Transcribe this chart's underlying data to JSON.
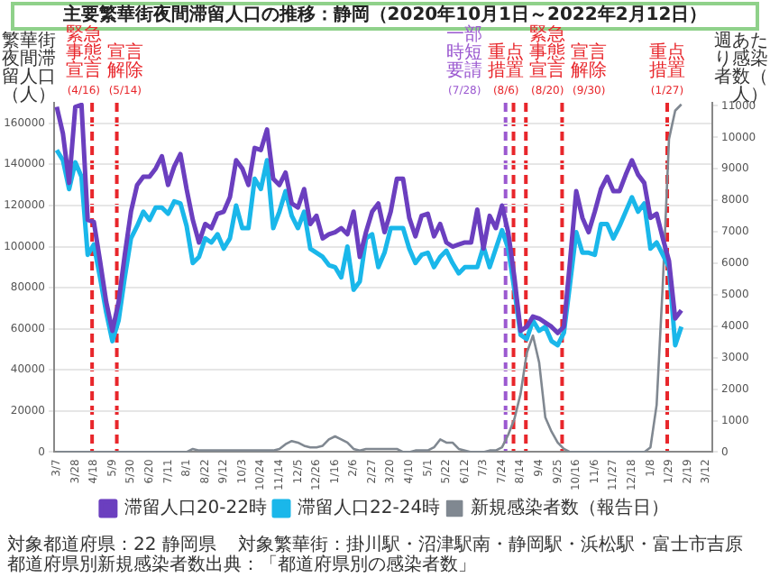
{
  "chart_data": {
    "type": "line",
    "title": "主要繁華街夜間滞留人口の推移：静岡（2020年10月1日～2022年2月12日）",
    "ylabel": "繁華街夜間滞留人口（人）",
    "y2label": "週あたり感染者数（人）",
    "x": [
      "2020-03-07",
      "2020-03-14",
      "2020-03-21",
      "2020-03-28",
      "2020-04-04",
      "2020-04-11",
      "2020-04-18",
      "2020-04-25",
      "2020-05-02",
      "2020-05-09",
      "2020-05-16",
      "2020-05-23",
      "2020-05-30",
      "2020-06-06",
      "2020-06-13",
      "2020-06-20",
      "2020-06-27",
      "2020-07-04",
      "2020-07-11",
      "2020-07-18",
      "2020-07-25",
      "2020-08-01",
      "2020-08-08",
      "2020-08-15",
      "2020-08-22",
      "2020-08-29",
      "2020-09-05",
      "2020-09-12",
      "2020-09-19",
      "2020-09-26",
      "2020-10-03",
      "2020-10-10",
      "2020-10-17",
      "2020-10-24",
      "2020-10-31",
      "2020-11-07",
      "2020-11-14",
      "2020-11-21",
      "2020-11-28",
      "2020-12-05",
      "2020-12-12",
      "2020-12-19",
      "2020-12-26",
      "2021-01-02",
      "2021-01-09",
      "2021-01-16",
      "2021-01-23",
      "2021-01-30",
      "2021-02-06",
      "2021-02-13",
      "2021-02-20",
      "2021-02-27",
      "2021-03-06",
      "2021-03-13",
      "2021-03-20",
      "2021-03-27",
      "2021-04-03",
      "2021-04-10",
      "2021-04-17",
      "2021-04-24",
      "2021-05-01",
      "2021-05-08",
      "2021-05-15",
      "2021-05-22",
      "2021-05-29",
      "2021-06-05",
      "2021-06-12",
      "2021-06-19",
      "2021-06-26",
      "2021-07-03",
      "2021-07-10",
      "2021-07-17",
      "2021-07-24",
      "2021-07-31",
      "2021-08-07",
      "2021-08-14",
      "2021-08-21",
      "2021-08-28",
      "2021-09-04",
      "2021-09-11",
      "2021-09-18",
      "2021-09-25",
      "2021-10-02",
      "2021-10-09",
      "2021-10-16",
      "2021-10-23",
      "2021-10-30",
      "2021-11-06",
      "2021-11-13",
      "2021-11-20",
      "2021-11-27",
      "2021-12-04",
      "2021-12-11",
      "2021-12-18",
      "2021-12-25",
      "2022-01-01",
      "2022-01-08",
      "2022-01-15",
      "2022-01-22",
      "2022-01-29",
      "2022-02-05",
      "2022-02-12"
    ],
    "series": [
      {
        "name": "滞留人口20-22時",
        "color": "#6b3fbf",
        "values": [
          168000,
          155000,
          131000,
          168000,
          169000,
          113000,
          112000,
          93000,
          73000,
          59000,
          73000,
          96000,
          117000,
          130000,
          134000,
          134000,
          138000,
          144000,
          130000,
          139000,
          145000,
          128000,
          113000,
          102000,
          111000,
          109000,
          116000,
          117000,
          124000,
          142000,
          138000,
          130000,
          148000,
          147000,
          157000,
          133000,
          130000,
          136000,
          121000,
          119000,
          128000,
          111000,
          115000,
          104000,
          106000,
          107000,
          109000,
          106000,
          117000,
          95000,
          107000,
          117000,
          121000,
          107000,
          117000,
          133000,
          133000,
          114000,
          105000,
          115000,
          116000,
          105000,
          111000,
          102000,
          100000,
          101000,
          102000,
          102000,
          118000,
          99000,
          115000,
          109000,
          120000,
          107000,
          85000,
          59000,
          61000,
          66000,
          65000,
          63000,
          61000,
          58000,
          61000,
          93000,
          127000,
          114000,
          107000,
          117000,
          128000,
          134000,
          127000,
          127000,
          135000,
          142000,
          135000,
          131000,
          114000,
          116000,
          104000,
          93000,
          65000,
          69000
        ]
      },
      {
        "name": "滞留人口22-24時",
        "color": "#1ab7ea",
        "values": [
          147000,
          142000,
          128000,
          141000,
          134000,
          96000,
          101000,
          85000,
          68000,
          54000,
          64000,
          85000,
          104000,
          110000,
          117000,
          113000,
          119000,
          119000,
          116000,
          122000,
          121000,
          110000,
          92000,
          95000,
          104000,
          102000,
          106000,
          99000,
          104000,
          120000,
          109000,
          109000,
          133000,
          128000,
          142000,
          109000,
          117000,
          127000,
          115000,
          109000,
          117000,
          99000,
          97000,
          95000,
          91000,
          90000,
          85000,
          100000,
          79000,
          83000,
          104000,
          106000,
          90000,
          97000,
          109000,
          109000,
          109000,
          99000,
          92000,
          96000,
          97000,
          90000,
          95000,
          98000,
          92000,
          87000,
          90000,
          90000,
          90000,
          100000,
          90000,
          99000,
          108000,
          99000,
          79000,
          57000,
          55000,
          64000,
          59000,
          61000,
          54000,
          52000,
          58000,
          82000,
          107000,
          97000,
          97000,
          96000,
          111000,
          111000,
          104000,
          110000,
          117000,
          124000,
          117000,
          121000,
          99000,
          102000,
          96000,
          90000,
          52000,
          61000
        ]
      },
      {
        "name": "新規感染者数（報告日）",
        "color": "#808891",
        "axis": "y2",
        "values": [
          0,
          0,
          0,
          0,
          0,
          0,
          0,
          0,
          0,
          0,
          0,
          0,
          0,
          0,
          0,
          0,
          0,
          0,
          0,
          0,
          0,
          0,
          100,
          50,
          50,
          50,
          50,
          50,
          50,
          50,
          50,
          50,
          50,
          50,
          50,
          50,
          100,
          250,
          350,
          300,
          200,
          150,
          150,
          200,
          400,
          500,
          400,
          300,
          100,
          50,
          100,
          100,
          100,
          100,
          100,
          100,
          0,
          0,
          50,
          50,
          50,
          150,
          400,
          300,
          300,
          100,
          50,
          0,
          0,
          0,
          50,
          50,
          150,
          550,
          1050,
          1850,
          3150,
          3700,
          2850,
          1100,
          650,
          300,
          100,
          0,
          0,
          0,
          0,
          0,
          0,
          0,
          0,
          0,
          0,
          0,
          0,
          0,
          150,
          1500,
          5350,
          9950,
          10850,
          11050
        ]
      }
    ],
    "xlim": [
      "2020-03-04",
      "2022-03-19"
    ],
    "xticks": [
      {
        "value": "2020-03-07",
        "label": "3/7"
      },
      {
        "value": "2020-03-28",
        "label": "3/28"
      },
      {
        "value": "2020-04-18",
        "label": "4/18"
      },
      {
        "value": "2020-05-09",
        "label": "5/9"
      },
      {
        "value": "2020-05-30",
        "label": "5/30"
      },
      {
        "value": "2020-06-20",
        "label": "6/20"
      },
      {
        "value": "2020-07-11",
        "label": "7/11"
      },
      {
        "value": "2020-08-01",
        "label": "8/1"
      },
      {
        "value": "2020-08-22",
        "label": "8/22"
      },
      {
        "value": "2020-09-12",
        "label": "9/12"
      },
      {
        "value": "2020-10-03",
        "label": "10/3"
      },
      {
        "value": "2020-10-24",
        "label": "10/24"
      },
      {
        "value": "2020-11-14",
        "label": "11/14"
      },
      {
        "value": "2020-12-05",
        "label": "12/5"
      },
      {
        "value": "2020-12-26",
        "label": "12/26"
      },
      {
        "value": "2021-01-16",
        "label": "1/16"
      },
      {
        "value": "2021-02-06",
        "label": "2/6"
      },
      {
        "value": "2021-02-27",
        "label": "2/27"
      },
      {
        "value": "2021-03-20",
        "label": "3/20"
      },
      {
        "value": "2021-04-10",
        "label": "4/10"
      },
      {
        "value": "2021-05-01",
        "label": "5/1"
      },
      {
        "value": "2021-05-22",
        "label": "5/22"
      },
      {
        "value": "2021-06-12",
        "label": "6/12"
      },
      {
        "value": "2021-07-03",
        "label": "7/3"
      },
      {
        "value": "2021-07-24",
        "label": "7/24"
      },
      {
        "value": "2021-08-14",
        "label": "8/14"
      },
      {
        "value": "2021-09-04",
        "label": "9/4"
      },
      {
        "value": "2021-09-25",
        "label": "9/25"
      },
      {
        "value": "2021-10-16",
        "label": "10/16"
      },
      {
        "value": "2021-11-06",
        "label": "11/6"
      },
      {
        "value": "2021-11-27",
        "label": "11/27"
      },
      {
        "value": "2021-12-18",
        "label": "12/18"
      },
      {
        "value": "2022-01-08",
        "label": "1/8"
      },
      {
        "value": "2022-01-29",
        "label": "1/29"
      },
      {
        "value": "2022-02-19",
        "label": "2/19"
      },
      {
        "value": "2022-03-12",
        "label": "3/12"
      }
    ],
    "ylim": [
      0,
      170000
    ],
    "yticks": [
      0,
      20000,
      40000,
      60000,
      80000,
      100000,
      120000,
      140000,
      160000
    ],
    "y2lim": [
      0,
      11100
    ],
    "y2ticks": [
      0,
      1000,
      2000,
      3000,
      4000,
      5000,
      6000,
      7000,
      8000,
      9000,
      10000,
      11000
    ],
    "ref_lines": [
      {
        "axis": "x",
        "value": "2020-04-16",
        "label": "緊急事態宣言(4/16)",
        "color": "#e8262b",
        "line_style": "dashed"
      },
      {
        "axis": "x",
        "value": "2020-05-14",
        "label": "宣言解除(5/14)",
        "color": "#e8262b",
        "line_style": "dashed"
      },
      {
        "axis": "x",
        "value": "2021-07-28",
        "label": "一部時短要請(7/28)",
        "color": "#9b59d0",
        "line_style": "dashed"
      },
      {
        "axis": "x",
        "value": "2021-08-06",
        "label": "重点措置(8/6)",
        "color": "#e8262b",
        "line_style": "dashed"
      },
      {
        "axis": "x",
        "value": "2021-08-20",
        "label": "緊急事態宣言(8/20)",
        "color": "#e8262b",
        "line_style": "dashed"
      },
      {
        "axis": "x",
        "value": "2021-09-30",
        "label": "宣言解除(9/30)",
        "color": "#e8262b",
        "line_style": "dashed"
      },
      {
        "axis": "x",
        "value": "2022-01-27",
        "label": "重点措置(1/27)",
        "color": "#e8262b",
        "line_style": "dashed"
      }
    ],
    "annotations": [
      "対象都道府県：22 静岡県",
      "対象繁華街：掛川駅・沼津駅南・静岡駅・浜松駅・富士市吉原",
      "都道府県別新規感染者数出典：「都道府県別の感染者数」"
    ],
    "grid": "y",
    "legend": "bottom"
  }
}
